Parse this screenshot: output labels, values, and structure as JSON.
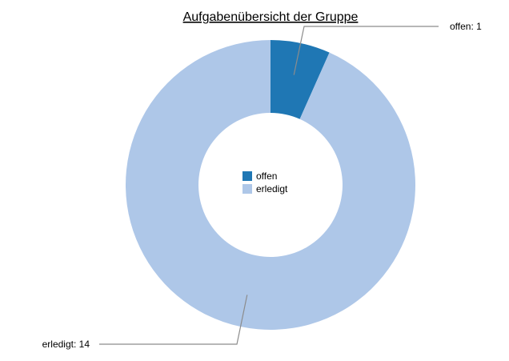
{
  "chart_data": {
    "type": "pie",
    "title": "Aufgabenübersicht der Gruppe",
    "categories": [
      "offen",
      "erledigt"
    ],
    "values": [
      1,
      14
    ],
    "colors": [
      "#1f77b4",
      "#aec7e8"
    ],
    "legend_placement": "center",
    "slice_labels": [
      "offen: 1",
      "erledigt: 14"
    ]
  }
}
